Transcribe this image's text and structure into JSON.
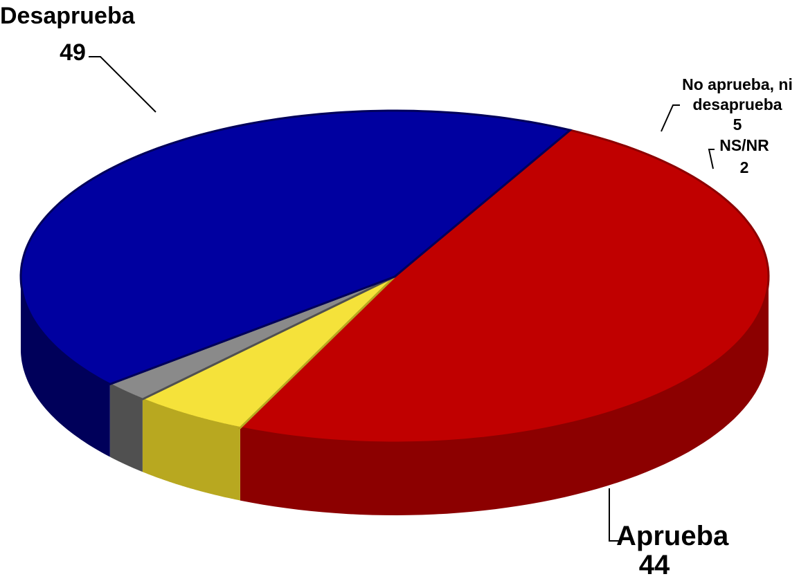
{
  "chart_data": {
    "type": "pie",
    "categories": [
      "Desaprueba",
      "No aprueba, ni desaprueba",
      "NS/NR",
      "Aprueba"
    ],
    "values": [
      49,
      5,
      2,
      44
    ],
    "colors": [
      "#c00000",
      "#f5e23a",
      "#8a8a8a",
      "#0000a0"
    ],
    "side_colors": [
      "#8c0000",
      "#b8a820",
      "#505050",
      "#00005a"
    ]
  }
}
